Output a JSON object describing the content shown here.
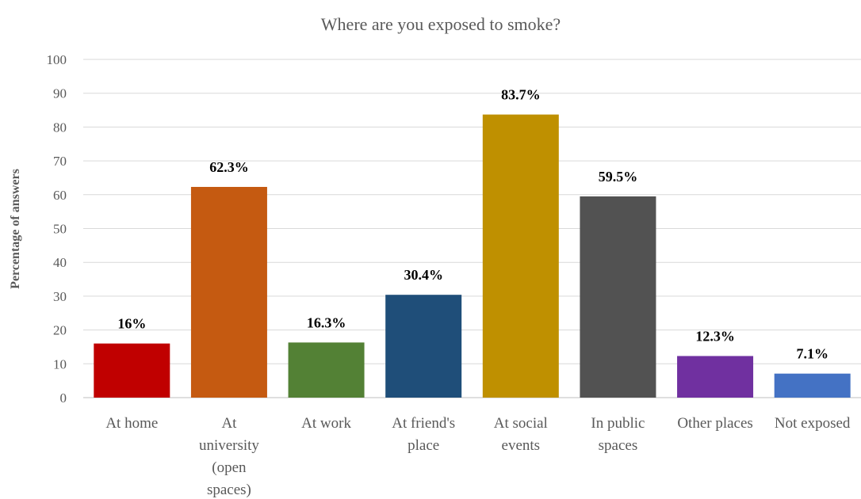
{
  "chart_data": {
    "type": "bar",
    "title": "Where are you exposed to smoke?",
    "ylabel": "Percentage of answers",
    "xlabel": "",
    "ylim": [
      0,
      100
    ],
    "yticks": [
      "0",
      "10",
      "20",
      "30",
      "40",
      "50",
      "60",
      "70",
      "80",
      "90",
      "100"
    ],
    "grid": true,
    "legend": "none",
    "categories": [
      [
        "At home"
      ],
      [
        "At",
        "university",
        "(open",
        "spaces)"
      ],
      [
        "At work"
      ],
      [
        "At friend's",
        "place"
      ],
      [
        "At social",
        "events"
      ],
      [
        "In public",
        "spaces"
      ],
      [
        "Other places"
      ],
      [
        "Not exposed"
      ]
    ],
    "values": [
      16,
      62.3,
      16.3,
      30.4,
      83.7,
      59.5,
      12.3,
      7.1
    ],
    "data_labels": [
      "16%",
      "62.3%",
      "16.3%",
      "30.4%",
      "83.7%",
      "59.5%",
      "12.3%",
      "7.1%"
    ],
    "colors": [
      "#c00000",
      "#c55a11",
      "#538135",
      "#1f4e79",
      "#bf9000",
      "#525252",
      "#7030a0",
      "#4472c4"
    ]
  }
}
